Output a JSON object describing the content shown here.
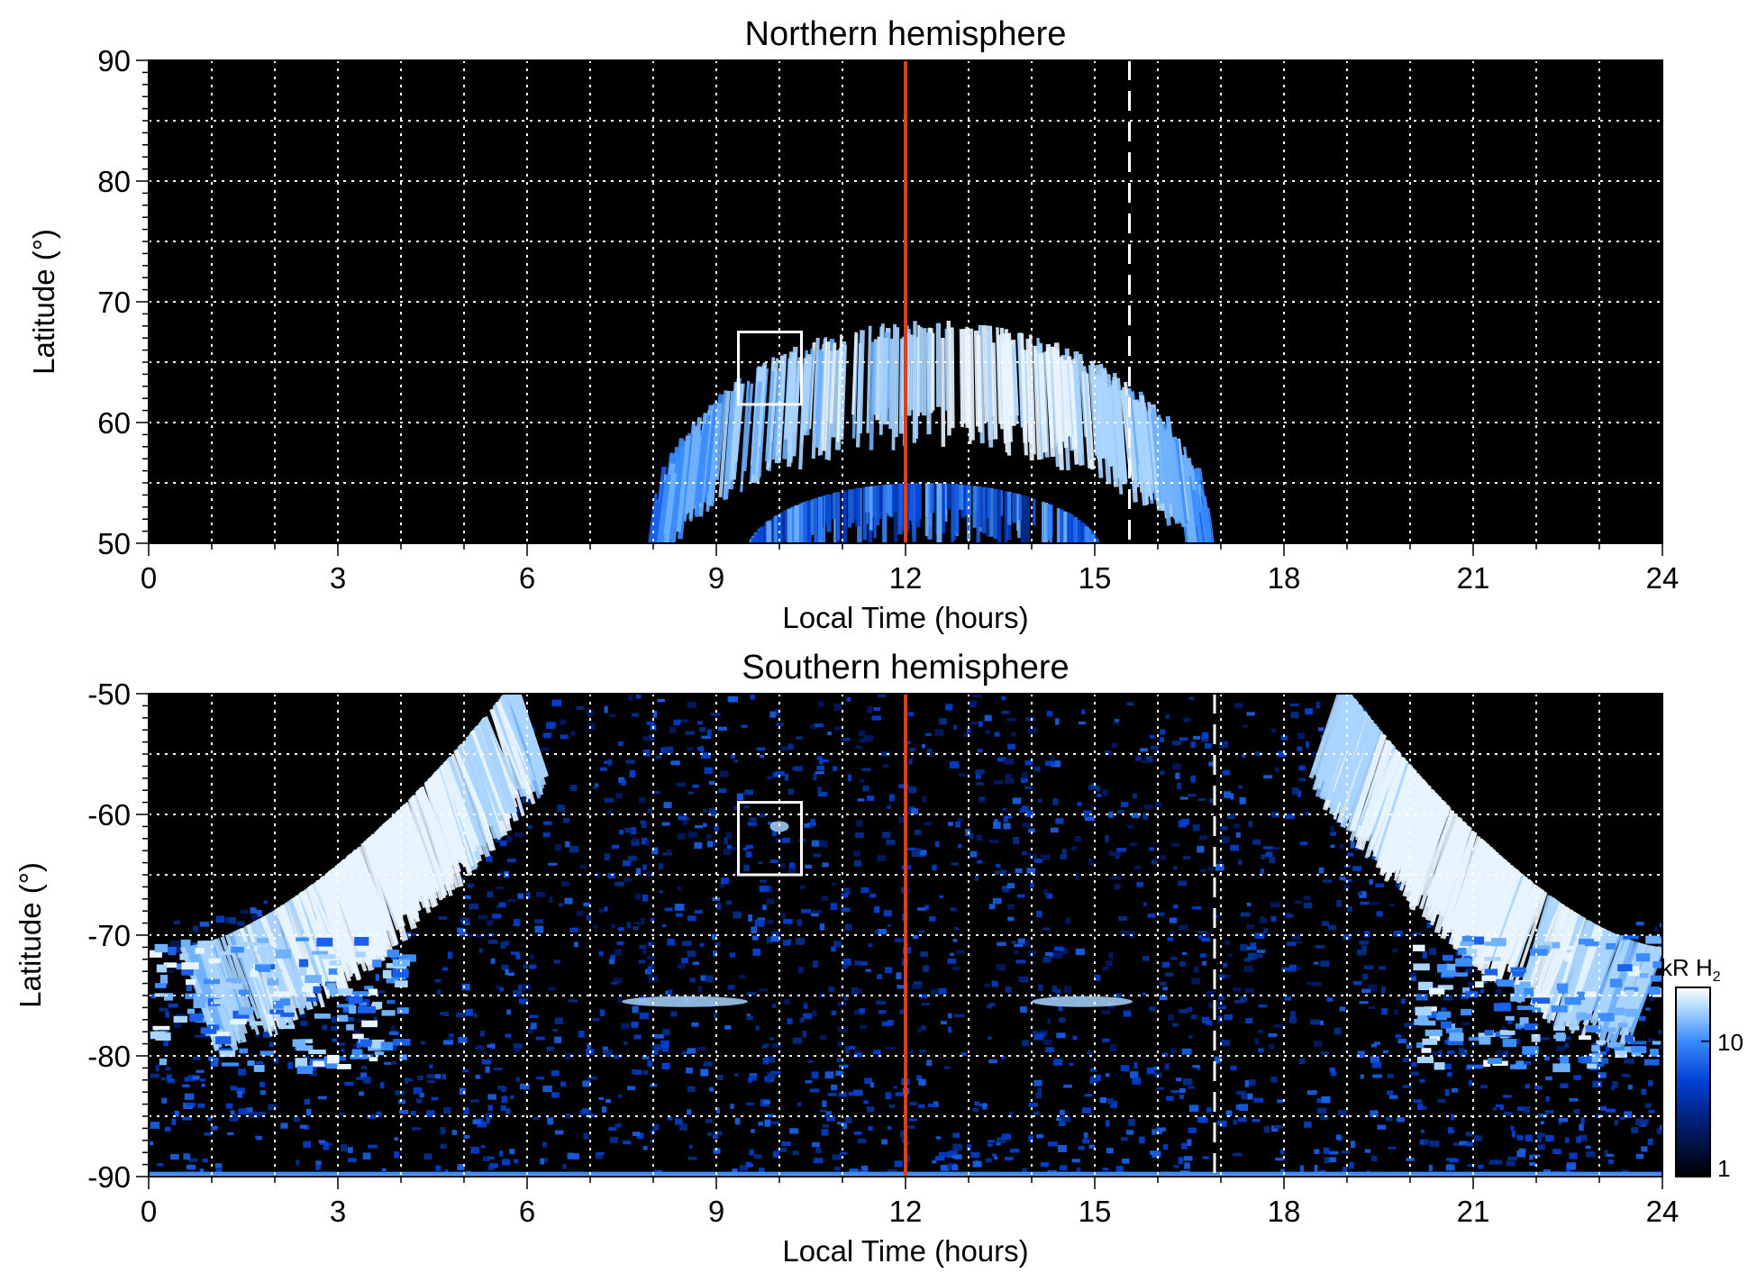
{
  "chart_data": [
    {
      "type": "heatmap",
      "title": "Northern hemisphere",
      "xlabel": "Local Time (hours)",
      "ylabel": "Latitude (°)",
      "xlim": [
        0,
        24
      ],
      "ylim": [
        50,
        90
      ],
      "xticks": [
        0,
        3,
        6,
        9,
        12,
        15,
        18,
        21,
        24
      ],
      "yticks": [
        50,
        60,
        70,
        80,
        90
      ],
      "grid": true,
      "noon_line_lt": 12,
      "dashed_line_lt": 15.55,
      "box": {
        "lt": [
          9.35,
          10.35
        ],
        "lat": [
          61.5,
          67.5
        ]
      },
      "auroral_oval": {
        "center_lt": 12.4,
        "half_width_lt": 4.2,
        "peak_lat": 65.5,
        "base_lat": 49,
        "inner_arc": {
          "center_lt": 12.3,
          "half_width_lt": 2.8,
          "peak_lat": 55
        }
      }
    },
    {
      "type": "heatmap",
      "title": "Southern hemisphere",
      "xlabel": "Local Time (hours)",
      "ylabel": "Latitude (°)",
      "xlim": [
        0,
        24
      ],
      "ylim": [
        -90,
        -50
      ],
      "xticks": [
        0,
        3,
        6,
        9,
        12,
        15,
        18,
        21,
        24
      ],
      "yticks": [
        -90,
        -80,
        -70,
        -60,
        -50
      ],
      "grid": true,
      "noon_line_lt": 12,
      "dashed_line_lt": 16.9,
      "box": {
        "lt": [
          9.35,
          10.35
        ],
        "lat": [
          -65,
          -59
        ]
      },
      "auroral_oval": {
        "left_arc_lt": [
          0.5,
          5.8
        ],
        "right_arc_lt": [
          18.9,
          24
        ],
        "arc_lat": [
          -50,
          -74
        ],
        "lower_lat": -80
      }
    }
  ],
  "colorbar": {
    "label": "kR H₂",
    "label_visible": "kR H",
    "label_sub": "2",
    "scale": "log",
    "ticks": [
      1,
      10
    ],
    "tick_labels": [
      "1",
      "10"
    ],
    "range": [
      1,
      25
    ],
    "colors": [
      "#000000",
      "#001a66",
      "#0040d0",
      "#3b8cff",
      "#a8d4ff",
      "#ffffff"
    ]
  },
  "colors": {
    "noon_line": "#d9401e",
    "grid": "#ffffff",
    "background": "#000000",
    "emission": "#1a73f0"
  }
}
